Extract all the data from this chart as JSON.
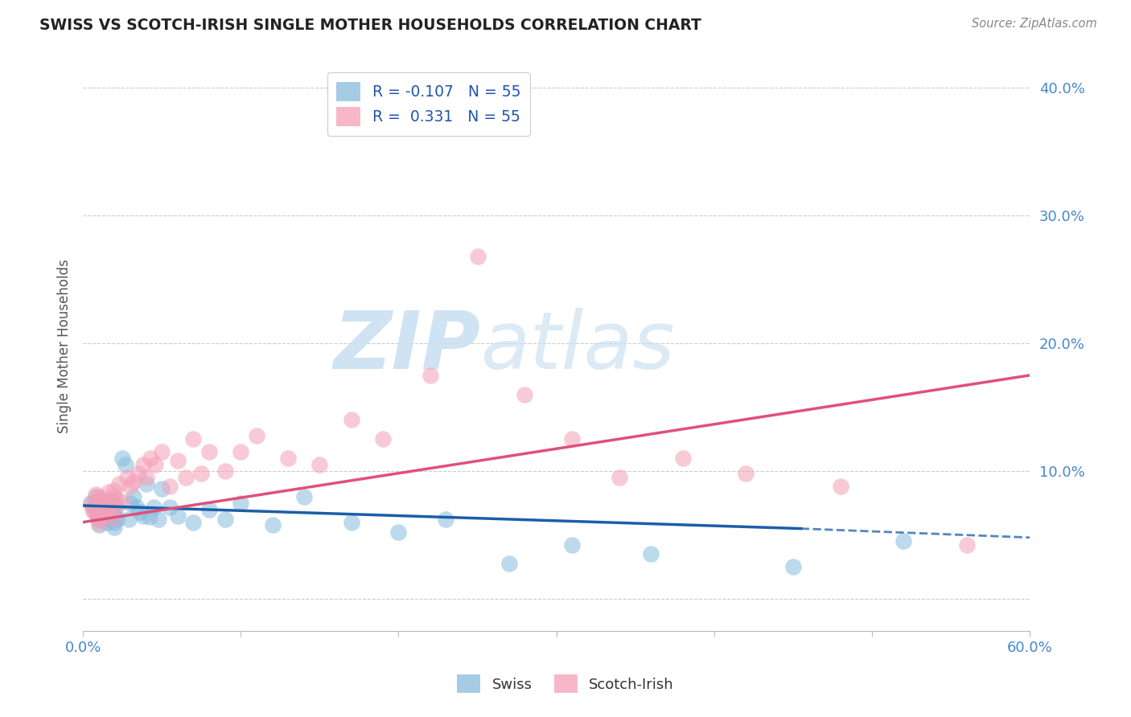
{
  "title": "SWISS VS SCOTCH-IRISH SINGLE MOTHER HOUSEHOLDS CORRELATION CHART",
  "source": "Source: ZipAtlas.com",
  "ylabel": "Single Mother Households",
  "ytick_vals": [
    0.0,
    0.1,
    0.2,
    0.3,
    0.4
  ],
  "ytick_labels": [
    "",
    "10.0%",
    "20.0%",
    "30.0%",
    "40.0%"
  ],
  "xtick_vals": [
    0.0,
    0.1,
    0.2,
    0.3,
    0.4,
    0.5,
    0.6
  ],
  "xtick_labels": [
    "0.0%",
    "",
    "",
    "",
    "",
    "",
    "60.0%"
  ],
  "legend_r1": "R = -0.107",
  "legend_n1": "N = 55",
  "legend_r2": "R =  0.331",
  "legend_n2": "N = 55",
  "swiss_color": "#88bbdd",
  "si_color": "#f4a0b8",
  "swiss_line_color": "#1a5ea8",
  "si_line_color": "#e0507a",
  "background_color": "#ffffff",
  "grid_color": "#cccccc",
  "watermark_zip": "ZIP",
  "watermark_atlas": "atlas",
  "swiss_x": [
    0.005,
    0.007,
    0.008,
    0.008,
    0.009,
    0.01,
    0.01,
    0.01,
    0.01,
    0.01,
    0.012,
    0.013,
    0.014,
    0.015,
    0.015,
    0.016,
    0.017,
    0.018,
    0.018,
    0.019,
    0.02,
    0.02,
    0.02,
    0.02,
    0.021,
    0.022,
    0.025,
    0.027,
    0.029,
    0.03,
    0.032,
    0.034,
    0.036,
    0.038,
    0.04,
    0.042,
    0.045,
    0.048,
    0.05,
    0.055,
    0.06,
    0.07,
    0.08,
    0.09,
    0.1,
    0.12,
    0.14,
    0.17,
    0.2,
    0.23,
    0.27,
    0.31,
    0.36,
    0.45,
    0.52
  ],
  "swiss_y": [
    0.075,
    0.072,
    0.068,
    0.08,
    0.065,
    0.07,
    0.078,
    0.062,
    0.058,
    0.074,
    0.076,
    0.069,
    0.064,
    0.071,
    0.06,
    0.073,
    0.066,
    0.062,
    0.078,
    0.068,
    0.074,
    0.065,
    0.06,
    0.056,
    0.072,
    0.063,
    0.11,
    0.105,
    0.062,
    0.075,
    0.08,
    0.072,
    0.068,
    0.065,
    0.09,
    0.064,
    0.072,
    0.062,
    0.086,
    0.072,
    0.065,
    0.06,
    0.07,
    0.062,
    0.075,
    0.058,
    0.08,
    0.06,
    0.052,
    0.062,
    0.028,
    0.042,
    0.035,
    0.025,
    0.045
  ],
  "si_x": [
    0.005,
    0.006,
    0.007,
    0.008,
    0.009,
    0.01,
    0.01,
    0.01,
    0.01,
    0.01,
    0.012,
    0.013,
    0.014,
    0.015,
    0.016,
    0.017,
    0.018,
    0.019,
    0.02,
    0.02,
    0.02,
    0.021,
    0.023,
    0.025,
    0.028,
    0.03,
    0.032,
    0.035,
    0.038,
    0.04,
    0.043,
    0.046,
    0.05,
    0.055,
    0.06,
    0.065,
    0.07,
    0.075,
    0.08,
    0.09,
    0.1,
    0.11,
    0.13,
    0.15,
    0.17,
    0.19,
    0.22,
    0.25,
    0.28,
    0.31,
    0.34,
    0.38,
    0.42,
    0.48,
    0.56
  ],
  "si_y": [
    0.075,
    0.07,
    0.068,
    0.082,
    0.065,
    0.072,
    0.08,
    0.063,
    0.059,
    0.076,
    0.078,
    0.068,
    0.072,
    0.076,
    0.084,
    0.068,
    0.075,
    0.063,
    0.08,
    0.072,
    0.085,
    0.078,
    0.09,
    0.076,
    0.095,
    0.088,
    0.092,
    0.098,
    0.105,
    0.095,
    0.11,
    0.105,
    0.115,
    0.088,
    0.108,
    0.095,
    0.125,
    0.098,
    0.115,
    0.1,
    0.115,
    0.128,
    0.11,
    0.105,
    0.14,
    0.125,
    0.175,
    0.268,
    0.16,
    0.125,
    0.095,
    0.11,
    0.098,
    0.088,
    0.042
  ],
  "xlim": [
    0.0,
    0.6
  ],
  "ylim": [
    -0.025,
    0.42
  ],
  "swiss_line_x0": 0.0,
  "swiss_line_y0": 0.073,
  "swiss_line_x1": 0.455,
  "swiss_line_y1": 0.055,
  "swiss_line_dash_x0": 0.455,
  "swiss_line_dash_y0": 0.055,
  "swiss_line_dash_x1": 0.6,
  "swiss_line_dash_y1": 0.048,
  "si_line_x0": 0.0,
  "si_line_y0": 0.06,
  "si_line_x1": 0.6,
  "si_line_y1": 0.175
}
